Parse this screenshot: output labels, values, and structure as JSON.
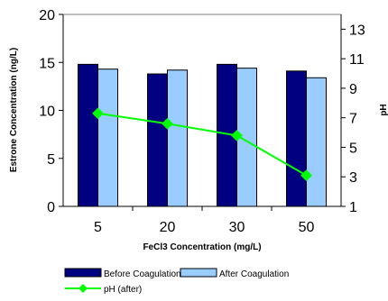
{
  "chart_data": {
    "type": "bar",
    "categories": [
      "5",
      "20",
      "30",
      "50"
    ],
    "xlabel": "FeCl3 Concentration (mg/L)",
    "ylabel": "Estrone Concentration (ng/L)",
    "y2label": "pH",
    "ylim": [
      0,
      20
    ],
    "yticks": [
      "0",
      "5",
      "10",
      "15",
      "20"
    ],
    "y2lim": [
      1,
      14
    ],
    "y2ticks": [
      "1",
      "3",
      "5",
      "7",
      "9",
      "11",
      "13"
    ],
    "grid": false,
    "legend_position": "bottom",
    "series": [
      {
        "name": "Before Coagulation",
        "type": "bar",
        "axis": "left",
        "values": [
          14.8,
          13.8,
          14.8,
          14.1
        ],
        "color": "#000080"
      },
      {
        "name": "After Coagulation",
        "type": "bar",
        "axis": "left",
        "values": [
          14.3,
          14.2,
          14.4,
          13.4
        ],
        "color": "#99ccff"
      },
      {
        "name": "pH (after)",
        "type": "line",
        "axis": "right",
        "values": [
          7.3,
          6.6,
          5.8,
          3.1
        ],
        "color": "#00ff00"
      }
    ]
  }
}
